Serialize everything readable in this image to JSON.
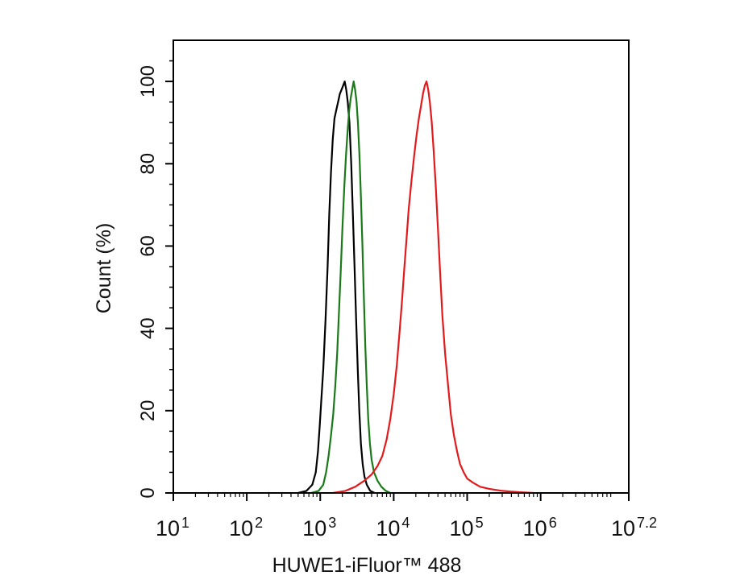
{
  "chart_data": {
    "type": "line",
    "title": "",
    "xlabel": "HUWE1-iFluor™ 488",
    "ylabel": "Count  (%)",
    "x_scale": "log10",
    "xlim": [
      10,
      15848932
    ],
    "ylim": [
      0,
      110
    ],
    "grid": false,
    "legend": "none",
    "xticks": [
      {
        "base": "10",
        "exp": "1",
        "value": 10
      },
      {
        "base": "10",
        "exp": "2",
        "value": 100
      },
      {
        "base": "10",
        "exp": "3",
        "value": 1000
      },
      {
        "base": "10",
        "exp": "4",
        "value": 10000
      },
      {
        "base": "10",
        "exp": "5",
        "value": 100000
      },
      {
        "base": "10",
        "exp": "6",
        "value": 1000000
      },
      {
        "base": "10",
        "exp": "7.2",
        "value": 15848932
      }
    ],
    "yticks": [
      {
        "label": "0",
        "value": 0
      },
      {
        "label": "20",
        "value": 20
      },
      {
        "label": "40",
        "value": 40
      },
      {
        "label": "60",
        "value": 60
      },
      {
        "label": "80",
        "value": 80
      },
      {
        "label": "100",
        "value": 100
      }
    ],
    "series": [
      {
        "color": "#000000",
        "points": [
          [
            500,
            0
          ],
          [
            650,
            0.5
          ],
          [
            780,
            2
          ],
          [
            870,
            5
          ],
          [
            930,
            10
          ],
          [
            980,
            16
          ],
          [
            1030,
            22
          ],
          [
            1100,
            30
          ],
          [
            1180,
            42
          ],
          [
            1260,
            55
          ],
          [
            1330,
            68
          ],
          [
            1400,
            78
          ],
          [
            1480,
            86
          ],
          [
            1560,
            91
          ],
          [
            1650,
            93
          ],
          [
            1750,
            95
          ],
          [
            1850,
            97
          ],
          [
            1950,
            98
          ],
          [
            2050,
            99
          ],
          [
            2150,
            100
          ],
          [
            2260,
            98
          ],
          [
            2370,
            95
          ],
          [
            2500,
            90
          ],
          [
            2640,
            80
          ],
          [
            2780,
            68
          ],
          [
            2930,
            55
          ],
          [
            3080,
            42
          ],
          [
            3240,
            30
          ],
          [
            3400,
            20
          ],
          [
            3580,
            12
          ],
          [
            3780,
            7
          ],
          [
            4000,
            4
          ],
          [
            4300,
            2
          ],
          [
            4800,
            0.5
          ],
          [
            5500,
            0
          ]
        ]
      },
      {
        "color": "#1a7a1a",
        "points": [
          [
            750,
            0
          ],
          [
            950,
            0.5
          ],
          [
            1100,
            2
          ],
          [
            1200,
            5
          ],
          [
            1300,
            9
          ],
          [
            1400,
            14
          ],
          [
            1500,
            19
          ],
          [
            1600,
            26
          ],
          [
            1700,
            34
          ],
          [
            1800,
            44
          ],
          [
            1900,
            54
          ],
          [
            2000,
            64
          ],
          [
            2120,
            74
          ],
          [
            2240,
            82
          ],
          [
            2360,
            88
          ],
          [
            2480,
            93
          ],
          [
            2600,
            96
          ],
          [
            2720,
            98
          ],
          [
            2850,
            100
          ],
          [
            2980,
            98
          ],
          [
            3120,
            95
          ],
          [
            3260,
            90
          ],
          [
            3420,
            82
          ],
          [
            3580,
            72
          ],
          [
            3750,
            60
          ],
          [
            3920,
            48
          ],
          [
            4100,
            36
          ],
          [
            4300,
            26
          ],
          [
            4500,
            18
          ],
          [
            4750,
            12
          ],
          [
            5000,
            8
          ],
          [
            5400,
            5
          ],
          [
            6000,
            3
          ],
          [
            6800,
            1.5
          ],
          [
            7800,
            0.5
          ],
          [
            9000,
            0
          ]
        ]
      },
      {
        "color": "#e31a1c",
        "points": [
          [
            1500,
            0
          ],
          [
            2200,
            0.5
          ],
          [
            3000,
            1.5
          ],
          [
            4000,
            3
          ],
          [
            5000,
            4.5
          ],
          [
            6000,
            6.5
          ],
          [
            7000,
            9
          ],
          [
            8000,
            13
          ],
          [
            9000,
            18
          ],
          [
            10000,
            24
          ],
          [
            11000,
            31
          ],
          [
            12000,
            39
          ],
          [
            13000,
            47
          ],
          [
            14000,
            55
          ],
          [
            15000,
            62
          ],
          [
            16000,
            69
          ],
          [
            17500,
            76
          ],
          [
            19000,
            82
          ],
          [
            20500,
            87
          ],
          [
            22000,
            91
          ],
          [
            23500,
            94
          ],
          [
            25000,
            97
          ],
          [
            26500,
            99
          ],
          [
            28000,
            100
          ],
          [
            29500,
            98
          ],
          [
            31000,
            95
          ],
          [
            33000,
            90
          ],
          [
            35000,
            83
          ],
          [
            37500,
            74
          ],
          [
            40000,
            64
          ],
          [
            43000,
            53
          ],
          [
            46000,
            43
          ],
          [
            50000,
            34
          ],
          [
            55000,
            26
          ],
          [
            60000,
            19
          ],
          [
            66000,
            14
          ],
          [
            73000,
            10
          ],
          [
            80000,
            7
          ],
          [
            90000,
            5
          ],
          [
            100000,
            3.5
          ],
          [
            120000,
            2.5
          ],
          [
            150000,
            1.5
          ],
          [
            200000,
            1
          ],
          [
            300000,
            0.5
          ],
          [
            500000,
            0.2
          ],
          [
            800000,
            0
          ]
        ]
      }
    ]
  }
}
